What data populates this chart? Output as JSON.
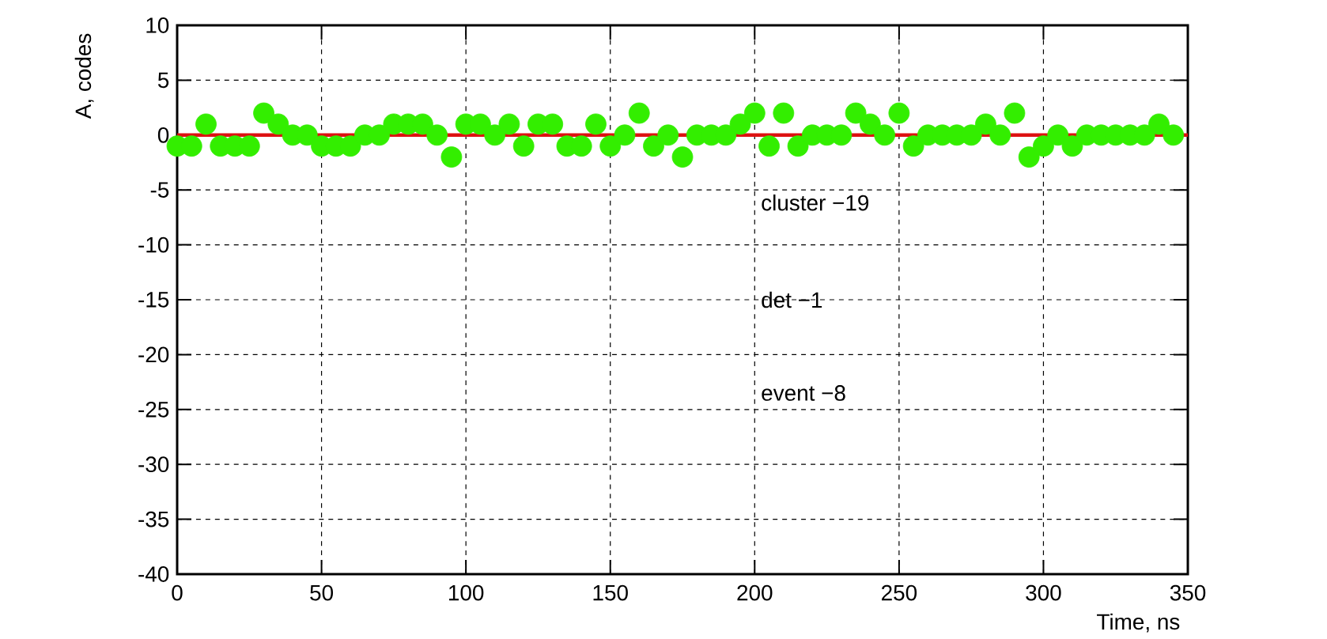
{
  "chart_data": {
    "type": "scatter",
    "xlabel": "Time, ns",
    "ylabel": "A, codes",
    "x": [
      0,
      5,
      10,
      15,
      20,
      25,
      30,
      35,
      40,
      45,
      50,
      55,
      60,
      65,
      70,
      75,
      80,
      85,
      90,
      95,
      100,
      105,
      110,
      115,
      120,
      125,
      130,
      135,
      140,
      145,
      150,
      155,
      160,
      165,
      170,
      175,
      180,
      185,
      190,
      195,
      200,
      205,
      210,
      215,
      220,
      225,
      230,
      235,
      240,
      245,
      250,
      255,
      260,
      265,
      270,
      275,
      280,
      285,
      290,
      295,
      300,
      305,
      310,
      315,
      320,
      325,
      330,
      335,
      340,
      345
    ],
    "series": [
      {
        "color": "#33ee00",
        "marker": "circle",
        "values": [
          -1,
          -1,
          1,
          -1,
          -1,
          -1,
          2,
          1,
          0,
          0,
          -1,
          -1,
          -1,
          0,
          0,
          1,
          1,
          1,
          0,
          -2,
          1,
          1,
          0,
          1,
          -1,
          1,
          1,
          -1,
          -1,
          1,
          -1,
          0,
          2,
          -1,
          0,
          -2,
          0,
          0,
          0,
          1,
          2,
          -1,
          2,
          -1,
          0,
          0,
          0,
          2,
          1,
          0,
          2,
          -1,
          0,
          0,
          0,
          0,
          1,
          0,
          2,
          -2,
          -1,
          0,
          -1,
          0,
          0,
          0,
          0,
          0,
          1,
          0
        ]
      },
      {
        "type": "line",
        "color": "#dd1111",
        "marker": "none",
        "line_style": "solid",
        "x": [
          0,
          350
        ],
        "values": [
          0,
          0
        ]
      }
    ],
    "xlim": [
      0,
      350
    ],
    "ylim": [
      -40,
      10
    ],
    "xticks": [
      0,
      50,
      100,
      150,
      200,
      250,
      300,
      350
    ],
    "yticks": [
      -40,
      -35,
      -30,
      -25,
      -20,
      -15,
      -10,
      -5,
      0,
      5,
      10
    ],
    "grid": true,
    "annotations": [
      "cluster −19",
      "det −1",
      "event −8"
    ]
  }
}
